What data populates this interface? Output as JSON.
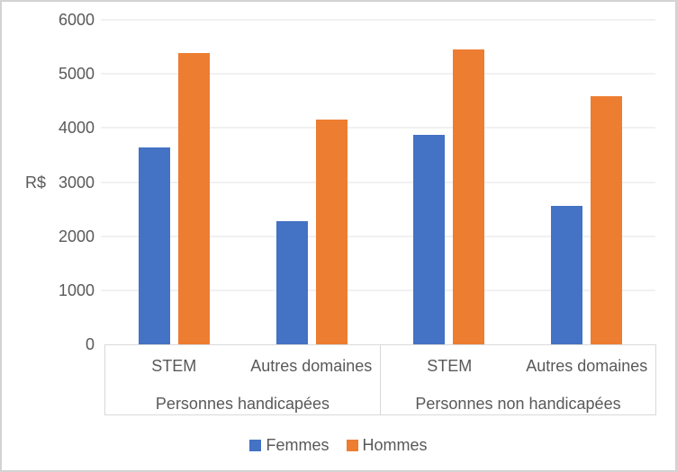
{
  "chart_data": {
    "type": "bar",
    "title": "",
    "ylabel": "R$",
    "ylim": [
      0,
      6000
    ],
    "ytick_step": 1000,
    "grid": true,
    "legend_position": "bottom",
    "groups": [
      {
        "label": "Personnes handicapées",
        "categories": [
          "STEM",
          "Autres domaines"
        ]
      },
      {
        "label": "Personnes non handicapées",
        "categories": [
          "STEM",
          "Autres domaines"
        ]
      }
    ],
    "series": [
      {
        "name": "Femmes",
        "color": "#4472C4",
        "values": [
          3640,
          2270,
          3870,
          2560
        ]
      },
      {
        "name": "Hommes",
        "color": "#ED7D31",
        "values": [
          5390,
          4150,
          5450,
          4580
        ]
      }
    ]
  },
  "colors": {
    "grid": "#F1F1F1",
    "axis_line": "#D9D9D9",
    "text": "#595959",
    "chart_border": "#D3D3D3",
    "background": "#FFFFFF"
  }
}
